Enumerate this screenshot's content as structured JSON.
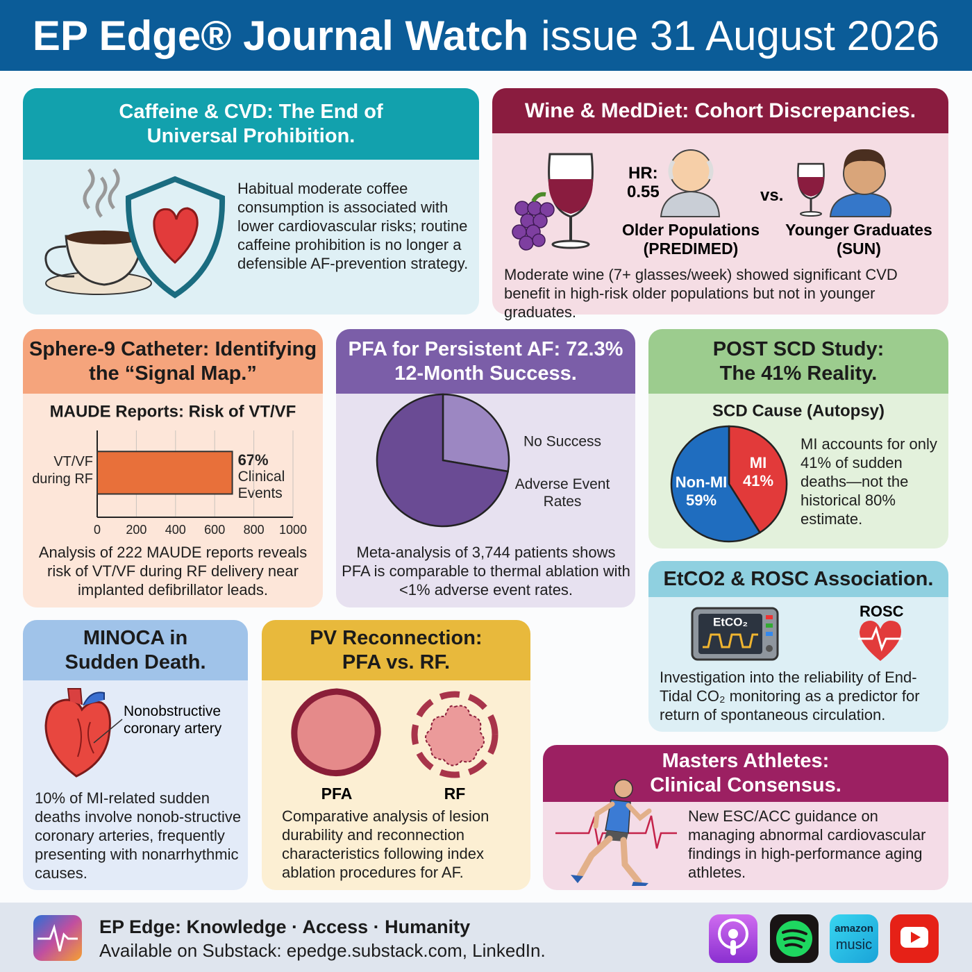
{
  "header": {
    "brand": "EP Edge® Journal Watch",
    "issue": "issue 31 August 2026"
  },
  "panels": {
    "caffeine": {
      "title": "Caffeine & CVD: The End of Universal Prohibition.",
      "text": "Habitual moderate coffee consumption is associated with lower cardiovascular risks; routine caffeine prohibition is no longer a defensible AF-prevention strategy."
    },
    "wine": {
      "title": "Wine & MedDiet: Cohort Discrepancies.",
      "hr_label": "HR:",
      "hr_value": "0.55",
      "versus": "vs.",
      "older": "Older Populations (PREDIMED)",
      "younger": "Younger Graduates (SUN)",
      "text": "Moderate wine (7+ glasses/week) showed significant CVD benefit in high-risk older populations but not in younger graduates."
    },
    "sphere9": {
      "title": "Sphere-9 Catheter: Identifying the “Signal Map.”",
      "text": "Analysis of 222 MAUDE reports reveals risk of VT/VF during RF delivery near implanted defibrillator leads."
    },
    "pfa": {
      "title": "PFA for Persistent AF: 72.3% 12-Month Success.",
      "text": "Meta-analysis of 3,744 patients shows PFA is comparable to thermal ablation with <1% adverse event rates."
    },
    "post_scd": {
      "title": "POST SCD Study: The 41% Reality.",
      "text": "MI accounts for only 41% of sudden deaths—not the historical 80% estimate."
    },
    "etco2": {
      "title": "EtCO2 & ROSC Association.",
      "monitor_label": "EtCO₂",
      "rosc_label": "ROSC",
      "text": "Investigation into the reliability of End-Tidal CO₂ monitoring as a predictor for return of spontaneous circulation."
    },
    "minoca": {
      "title": "MINOCA in Sudden Death.",
      "callout": "Nonobstructive coronary artery",
      "text": "10% of MI-related sudden deaths involve nonob-structive coronary arteries, frequently presenting with nonarrhythmic causes."
    },
    "pv": {
      "title": "PV Reconnection: PFA vs. RF.",
      "pfa_label": "PFA",
      "rf_label": "RF",
      "text": "Comparative analysis of lesion durability and reconnection characteristics following index ablation procedures for AF."
    },
    "masters": {
      "title": "Masters Athletes: Clinical Consensus.",
      "text": "New ESC/ACC guidance on managing abnormal cardiovascular findings in high-performance aging athletes."
    }
  },
  "footer": {
    "tagline": "EP Edge: Knowledge · Access · Humanity",
    "availability": "Available on Substack: epedge.substack.com, LinkedIn.",
    "amazon_icon_top": "amazon",
    "amazon_icon_bottom": "music"
  },
  "chart_data": [
    {
      "type": "bar",
      "orientation": "horizontal",
      "title": "MAUDE Reports: Risk of VT/VF",
      "categories": [
        "VT/VF during RF"
      ],
      "values": [
        690
      ],
      "color": "#e8703a",
      "xlim": [
        0,
        1000
      ],
      "xticks": [
        0,
        200,
        400,
        600,
        800,
        1000
      ],
      "grid": true,
      "annotation_value": "67%",
      "annotation_caption": "Clinical Events"
    },
    {
      "type": "pie",
      "categories": [
        "No Success",
        "Adverse Event Rates"
      ],
      "values": [
        27.7,
        72.3
      ],
      "colors": [
        "#9c87c2",
        "#6a4b94"
      ]
    },
    {
      "type": "pie",
      "title": "SCD Cause (Autopsy)",
      "categories": [
        "MI",
        "Non-MI"
      ],
      "values": [
        41,
        59
      ],
      "value_labels": [
        "41%",
        "59%"
      ],
      "colors": [
        "#e23a3a",
        "#1f6dbf"
      ]
    }
  ]
}
